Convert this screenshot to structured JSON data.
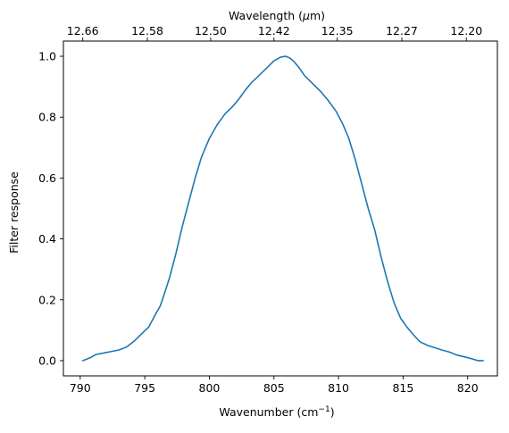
{
  "chart_data": {
    "type": "line",
    "xlabel": "Wavenumber (cm",
    "xlabel_sup": "−1",
    "xlabel_end": ")",
    "ylabel": "Filter response",
    "top_xlabel": "Wavelength (",
    "top_xlabel_mu": "μ",
    "top_xlabel_end": "m)",
    "xlim": [
      788.7,
      822.3
    ],
    "ylim": [
      -0.05,
      1.05
    ],
    "x_ticks": [
      790,
      795,
      800,
      805,
      810,
      815,
      820
    ],
    "y_ticks": [
      0.0,
      0.2,
      0.4,
      0.6,
      0.8,
      1.0
    ],
    "x_tick_labels": [
      "790",
      "795",
      "800",
      "805",
      "810",
      "815",
      "820"
    ],
    "y_tick_labels": [
      "0.0",
      "0.2",
      "0.4",
      "0.6",
      "0.8",
      "1.0"
    ],
    "top_ticks": [
      {
        "at": 790.2,
        "label": "12.66"
      },
      {
        "at": 795.2,
        "label": "12.58"
      },
      {
        "at": 800.1,
        "label": "12.50"
      },
      {
        "at": 805.0,
        "label": "12.42"
      },
      {
        "at": 809.9,
        "label": "12.35"
      },
      {
        "at": 814.9,
        "label": "12.27"
      },
      {
        "at": 819.9,
        "label": "12.20"
      }
    ],
    "grid": false,
    "series": [
      {
        "color": "#1f77b4",
        "x": [
          790.2,
          790.8,
          791.2,
          791.8,
          792.4,
          793.0,
          793.6,
          794.2,
          794.8,
          795.3,
          795.8,
          796.2,
          796.4,
          796.9,
          797.4,
          797.9,
          798.4,
          798.9,
          799.4,
          800.0,
          800.6,
          801.2,
          801.8,
          802.3,
          802.8,
          803.3,
          803.8,
          804.4,
          805.0,
          805.5,
          805.9,
          806.2,
          806.5,
          806.9,
          807.4,
          808.0,
          808.6,
          809.2,
          809.8,
          810.3,
          810.8,
          811.3,
          811.8,
          812.3,
          812.8,
          813.3,
          813.8,
          814.3,
          814.8,
          815.3,
          815.8,
          816.3,
          816.9,
          817.4,
          818.0,
          818.6,
          819.2,
          819.6,
          820.0,
          820.4,
          820.8,
          821.2
        ],
        "y": [
          0.0,
          0.01,
          0.02,
          0.025,
          0.03,
          0.035,
          0.045,
          0.065,
          0.09,
          0.11,
          0.15,
          0.18,
          0.205,
          0.27,
          0.35,
          0.44,
          0.52,
          0.6,
          0.67,
          0.73,
          0.775,
          0.81,
          0.835,
          0.86,
          0.89,
          0.915,
          0.935,
          0.96,
          0.985,
          0.997,
          1.0,
          0.995,
          0.985,
          0.965,
          0.935,
          0.91,
          0.885,
          0.855,
          0.82,
          0.78,
          0.73,
          0.66,
          0.58,
          0.5,
          0.43,
          0.34,
          0.26,
          0.19,
          0.14,
          0.11,
          0.085,
          0.062,
          0.05,
          0.043,
          0.035,
          0.028,
          0.018,
          0.014,
          0.01,
          0.005,
          0.0,
          0.0
        ]
      }
    ]
  }
}
